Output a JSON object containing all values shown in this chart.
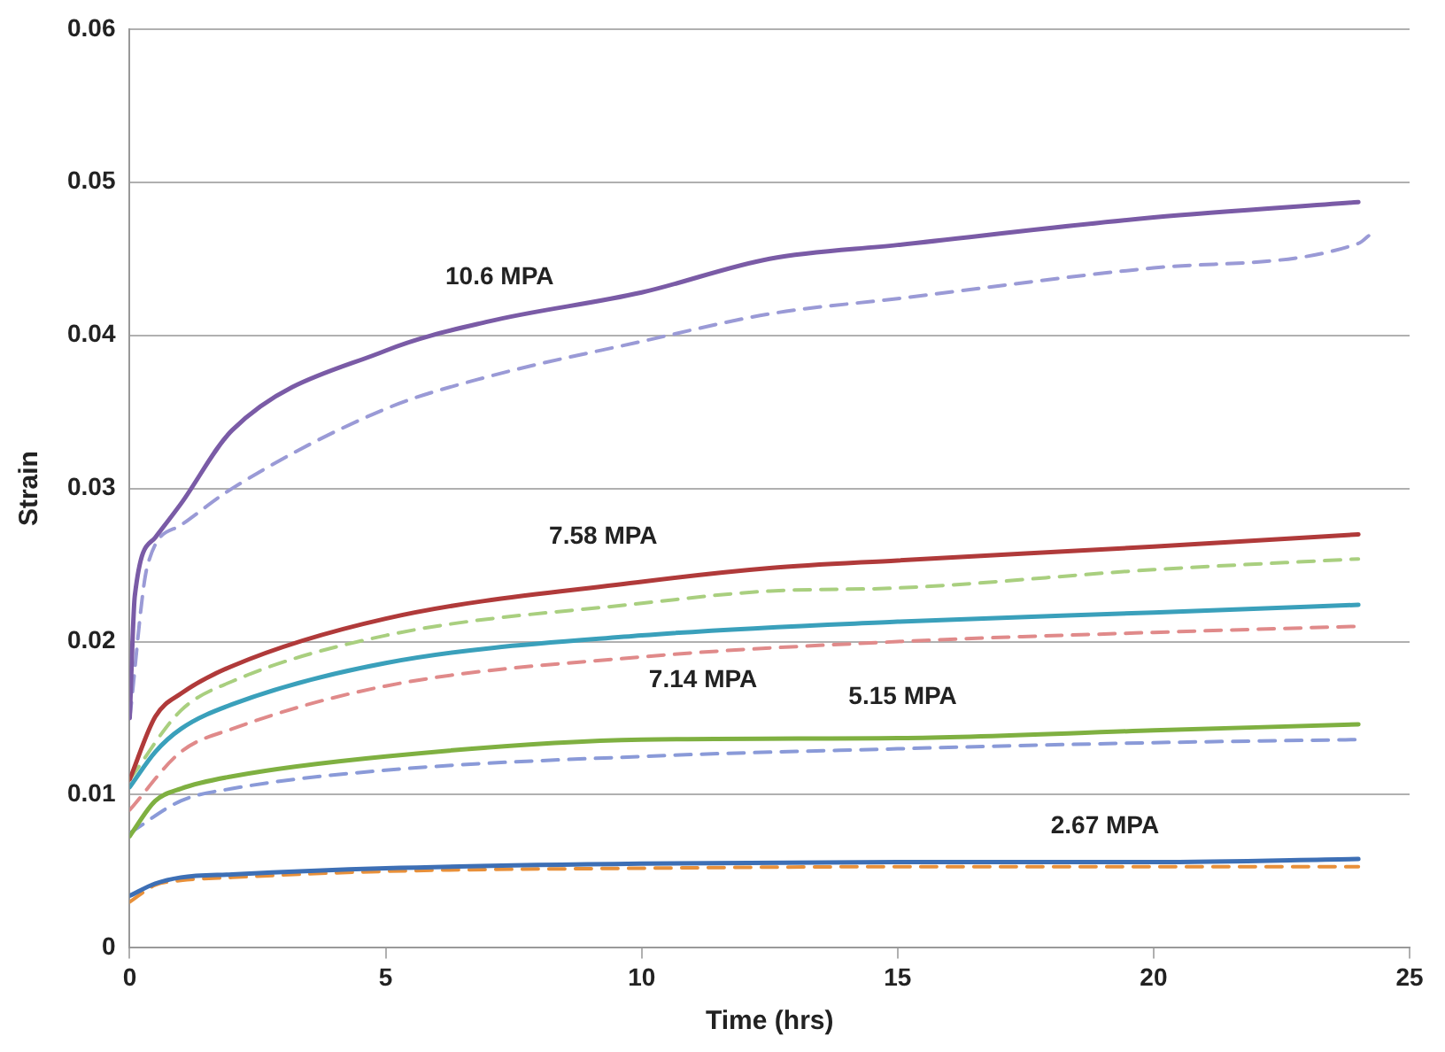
{
  "chart_data": {
    "type": "line",
    "xlabel": "Time (hrs)",
    "ylabel": "Strain",
    "xlim": [
      0,
      25
    ],
    "xticks": [
      0,
      5,
      10,
      15,
      20,
      25
    ],
    "ylim": [
      0,
      0.06
    ],
    "yticks": [
      0,
      0.01,
      0.02,
      0.03,
      0.04,
      0.05,
      0.06
    ],
    "grid": "y",
    "marker": "none",
    "series": [
      {
        "color": "#7a5ba6",
        "line_style": "solid",
        "x": [
          0,
          0.1,
          0.5,
          1,
          2,
          5,
          7,
          10,
          12.5,
          15,
          20,
          24
        ],
        "values": [
          0.015,
          0.023,
          0.0268,
          0.029,
          0.0338,
          0.039,
          0.0409,
          0.0428,
          0.045,
          0.0459,
          0.0477,
          0.0487
        ]
      },
      {
        "color": "#9a9ad6",
        "line_style": "dashed",
        "x": [
          0,
          0.35,
          1,
          2,
          5,
          7,
          10,
          12.5,
          15,
          20,
          24,
          24.2
        ],
        "values": [
          0.015,
          0.025,
          0.0276,
          0.03,
          0.0352,
          0.0373,
          0.0396,
          0.0414,
          0.0424,
          0.0444,
          0.046,
          0.0465
        ]
      },
      {
        "color": "#b03a3a",
        "line_style": "solid",
        "x": [
          0,
          0.5,
          1,
          2,
          5,
          10,
          12.5,
          15,
          20,
          24
        ],
        "values": [
          0.011,
          0.0151,
          0.0166,
          0.0184,
          0.0215,
          0.0239,
          0.0248,
          0.0253,
          0.0262,
          0.027
        ]
      },
      {
        "color": "#a9cf7f",
        "line_style": "dashed",
        "x": [
          0,
          1,
          2,
          5,
          10,
          12.5,
          15,
          20,
          24
        ],
        "values": [
          0.011,
          0.0155,
          0.0174,
          0.0204,
          0.0225,
          0.0233,
          0.0235,
          0.0247,
          0.0254
        ]
      },
      {
        "color": "#3aa0bb",
        "line_style": "solid",
        "x": [
          0,
          0.5,
          1,
          2,
          5,
          10,
          15,
          20,
          24
        ],
        "values": [
          0.0105,
          0.0128,
          0.0143,
          0.0159,
          0.0186,
          0.0204,
          0.0213,
          0.0219,
          0.0224
        ]
      },
      {
        "color": "#e08a8a",
        "line_style": "dashed",
        "x": [
          0,
          1,
          2,
          5,
          10,
          15,
          20,
          24
        ],
        "values": [
          0.009,
          0.0128,
          0.0143,
          0.0171,
          0.019,
          0.02,
          0.0206,
          0.021
        ]
      },
      {
        "color": "#7fb041",
        "line_style": "solid",
        "x": [
          0,
          0.5,
          1,
          2,
          5,
          10,
          15,
          20,
          24
        ],
        "values": [
          0.0073,
          0.0096,
          0.0104,
          0.0112,
          0.0125,
          0.0136,
          0.0137,
          0.0142,
          0.0146
        ]
      },
      {
        "color": "#8a9ad8",
        "line_style": "dashed",
        "x": [
          0,
          1,
          2,
          5,
          10,
          15,
          20,
          24
        ],
        "values": [
          0.0075,
          0.0096,
          0.0104,
          0.0116,
          0.0125,
          0.013,
          0.0134,
          0.0136
        ]
      },
      {
        "color": "#3d6fb5",
        "line_style": "solid",
        "x": [
          0,
          0.5,
          1,
          2,
          5,
          10,
          15,
          20,
          24
        ],
        "values": [
          0.0034,
          0.0042,
          0.0046,
          0.0048,
          0.0052,
          0.0055,
          0.0056,
          0.0056,
          0.0058
        ]
      },
      {
        "color": "#e8903a",
        "line_style": "dashed",
        "x": [
          0,
          0.5,
          1,
          2,
          5,
          10,
          15,
          20,
          24
        ],
        "values": [
          0.003,
          0.0041,
          0.0044,
          0.0046,
          0.005,
          0.0052,
          0.0053,
          0.0053,
          0.0053
        ]
      }
    ],
    "annotations": [
      "10.6 MPA",
      "7.58 MPA",
      "7.14 MPA",
      "5.15 MPA",
      "2.67 MPA"
    ]
  }
}
